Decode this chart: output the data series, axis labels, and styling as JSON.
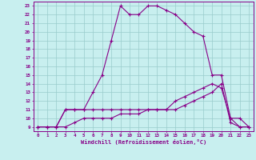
{
  "xlabel": "Windchill (Refroidissement éolien,°C)",
  "xlim": [
    -0.5,
    23.5
  ],
  "ylim": [
    8.5,
    23.5
  ],
  "bg_color": "#c8efef",
  "line_color": "#880088",
  "grid_color": "#99cccc",
  "line1_x": [
    0,
    1,
    2,
    3,
    4,
    5,
    6,
    7,
    8,
    9,
    10,
    11,
    12,
    13,
    14,
    15,
    16,
    17,
    18,
    19,
    20,
    21,
    22,
    23
  ],
  "line1_y": [
    9,
    9,
    9,
    11,
    11,
    11,
    13,
    15,
    19,
    23,
    22,
    22,
    23,
    23,
    22.5,
    22,
    21,
    20,
    19.5,
    15,
    15,
    10,
    9,
    9
  ],
  "line2_x": [
    0,
    1,
    2,
    3,
    4,
    5,
    6,
    7,
    8,
    9,
    10,
    11,
    12,
    13,
    14,
    15,
    16,
    17,
    18,
    19,
    20,
    21,
    22,
    23
  ],
  "line2_y": [
    9,
    9,
    9,
    11,
    11,
    11,
    11,
    11,
    11,
    11,
    11,
    11,
    11,
    11,
    11,
    12,
    12.5,
    13,
    13.5,
    14,
    13.5,
    10,
    10,
    9
  ],
  "line3_x": [
    0,
    1,
    2,
    3,
    4,
    5,
    6,
    7,
    8,
    9,
    10,
    11,
    12,
    13,
    14,
    15,
    16,
    17,
    18,
    19,
    20,
    21,
    22,
    23
  ],
  "line3_y": [
    9,
    9,
    9,
    9,
    9.5,
    10,
    10,
    10,
    10,
    10.5,
    10.5,
    10.5,
    11,
    11,
    11,
    11,
    11.5,
    12,
    12.5,
    13,
    14,
    9.5,
    9,
    9
  ]
}
